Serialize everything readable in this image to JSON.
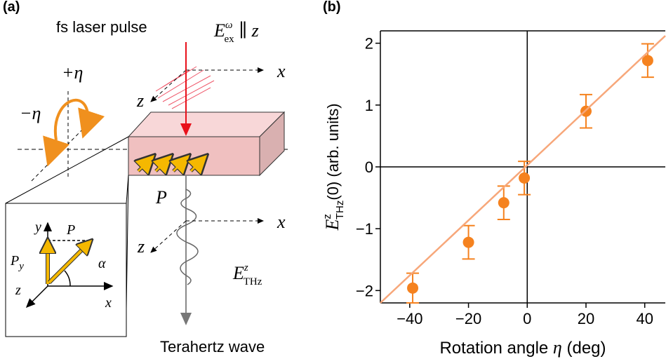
{
  "diagram": {
    "panel_label": "(a)",
    "pulse_label": "fs laser pulse",
    "field_label": [
      "E",
      "ω",
      "ex",
      " ∥ z"
    ],
    "top_x": "x",
    "top_z": "z",
    "plus_eta": "+η",
    "minus_eta": "−η",
    "polarization": "P",
    "bottom_x": "x",
    "bottom_z": "z",
    "thz_label": [
      "E",
      "z",
      "THz"
    ],
    "wave_label": "Terahertz wave",
    "inset": {
      "y": "y",
      "p": "P",
      "py": [
        "P",
        "y"
      ],
      "alpha": "α",
      "z": "z",
      "x": "x"
    }
  },
  "chart_data": {
    "type": "scatter",
    "panel_label": "(b)",
    "xlabel": [
      "Rotation angle ",
      "η",
      " (deg)"
    ],
    "ylabel": [
      "E",
      "z",
      "THz",
      "(0) (arb. units)"
    ],
    "x": [
      -39,
      -20,
      -8,
      -1,
      20,
      41
    ],
    "series": [
      {
        "color": "#f5821f",
        "values": [
          -1.96,
          -1.22,
          -0.58,
          -0.18,
          0.9,
          1.72
        ],
        "errors": [
          0.24,
          0.27,
          0.27,
          0.27,
          0.27,
          0.27
        ]
      },
      {
        "type": "line",
        "color": "#f7a77a",
        "x": [
          -50,
          47
        ],
        "values": [
          -2.2,
          2.12
        ]
      }
    ],
    "xlim": [
      -50,
      47
    ],
    "ylim": [
      -2.2,
      2.2
    ],
    "xticks": [
      {
        "value": -40,
        "label": "−40"
      },
      {
        "value": -20,
        "label": "−20"
      },
      0,
      20,
      40
    ],
    "yticks": [
      {
        "value": -2,
        "label": "−2"
      },
      {
        "value": -1,
        "label": "−1"
      },
      0,
      1,
      2
    ],
    "zero_lines": true
  }
}
